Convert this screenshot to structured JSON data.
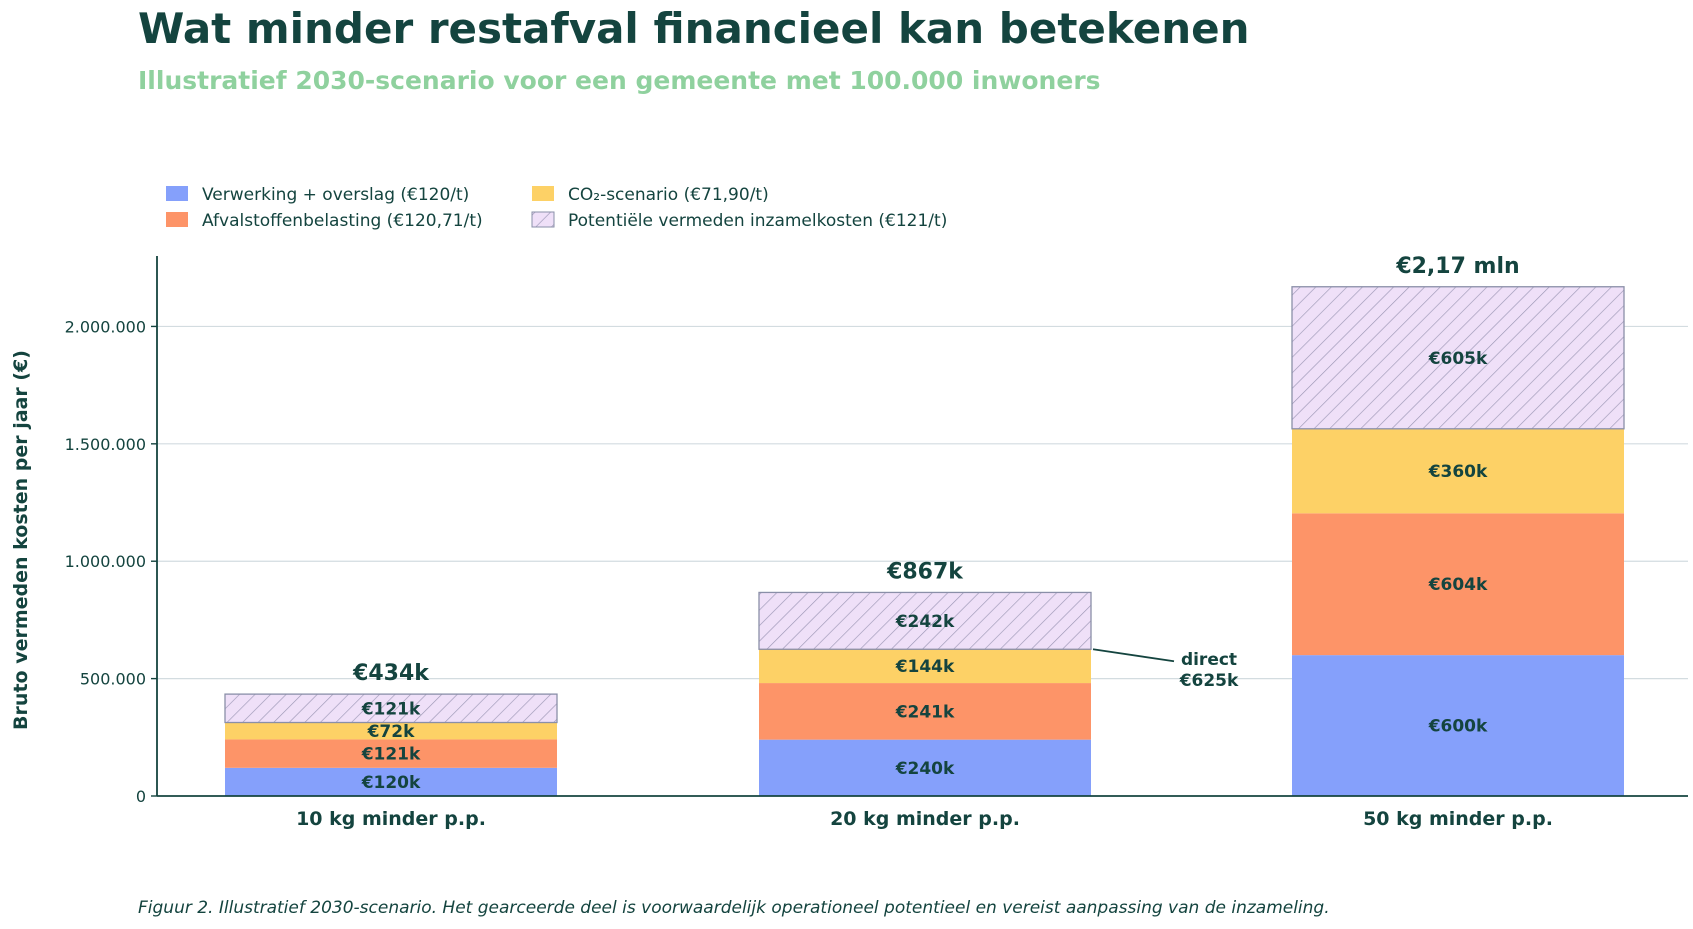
{
  "title": "Wat minder restafval financieel kan betekenen",
  "subtitle": "Illustratief 2030-scenario voor een gemeente met 100.000 inwoners",
  "caption": "Figuur 2. Illustratief 2030-scenario. Het gearceerde deel is voorwaardelijk operationeel potentieel en vereist aanpassing van de inzameling.",
  "colors": {
    "text": "#14443f",
    "subtitle": "#8fd19e",
    "grid": "#d3dce0",
    "hatch_edge": "#8a8fa8"
  },
  "chart_data": {
    "type": "bar",
    "stacked": true,
    "categories": [
      "10 kg minder p.p.",
      "20 kg minder p.p.",
      "50 kg minder p.p."
    ],
    "ylabel": "Bruto vermeden kosten per jaar (€)",
    "xlabel": "",
    "ylim": [
      0,
      2300000
    ],
    "yticks": [
      0,
      500000,
      1000000,
      1500000,
      2000000
    ],
    "ytick_labels": [
      "0",
      "500.000",
      "1.000.000",
      "1.500.000",
      "2.000.000"
    ],
    "grid": "horizontal",
    "legend_position": "top-left",
    "series": [
      {
        "name": "Verwerking + overslag (€120/t)",
        "color": "#85a0fb",
        "hatched": false,
        "values": [
          120000,
          240000,
          600000
        ],
        "labels": [
          "€120k",
          "€240k",
          "€600k"
        ]
      },
      {
        "name": "Afvalstoffenbelasting (€120,71/t)",
        "color": "#fd9468",
        "hatched": false,
        "values": [
          121000,
          241000,
          604000
        ],
        "labels": [
          "€121k",
          "€241k",
          "€604k"
        ]
      },
      {
        "name": "CO₂-scenario (€71,90/t)",
        "color": "#fdd166",
        "hatched": false,
        "values": [
          72000,
          144000,
          360000
        ],
        "labels": [
          "€72k",
          "€144k",
          "€360k"
        ]
      },
      {
        "name": "Potentiële vermeden inzamelkosten (€121/t)",
        "color": "#efe0f8",
        "hatched": true,
        "values": [
          121000,
          242000,
          605000
        ],
        "labels": [
          "€121k",
          "€242k",
          "€605k"
        ]
      }
    ],
    "totals": [
      "€434k",
      "€867k",
      "€2,17 mln"
    ],
    "annotations": [
      {
        "category_index": 1,
        "lines": [
          "direct",
          "€625k"
        ],
        "value": 625000
      }
    ]
  }
}
